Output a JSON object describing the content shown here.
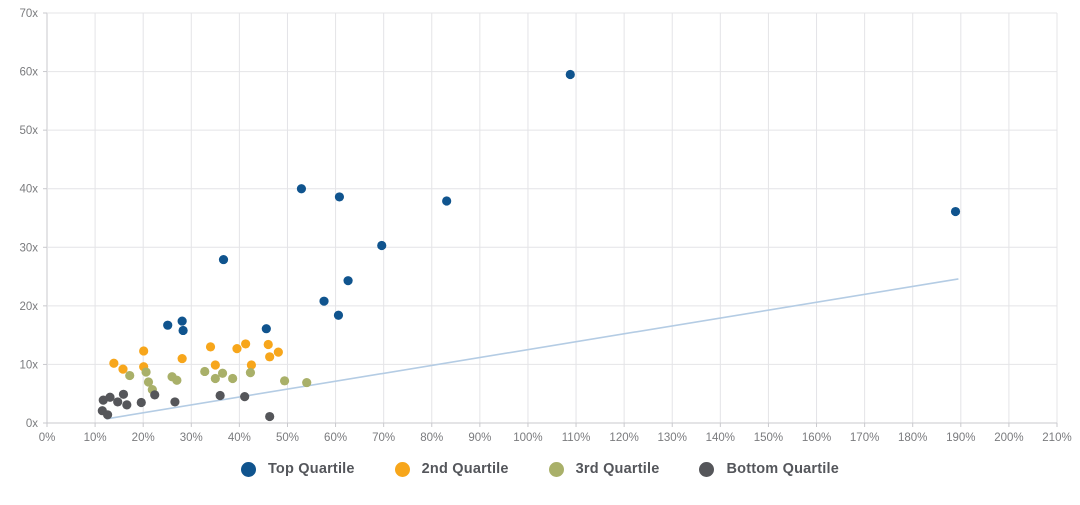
{
  "chart_data": {
    "type": "scatter",
    "title": "",
    "xlabel": "",
    "ylabel": "",
    "xlim": [
      0,
      210
    ],
    "ylim": [
      0,
      70
    ],
    "grid": true,
    "legend_position": "bottom-center",
    "x_ticks": {
      "values": [
        0,
        10,
        20,
        30,
        40,
        50,
        60,
        70,
        80,
        90,
        100,
        110,
        120,
        130,
        140,
        150,
        160,
        170,
        180,
        190,
        200,
        210
      ],
      "labels": [
        "0%",
        "10%",
        "20%",
        "30%",
        "40%",
        "50%",
        "60%",
        "70%",
        "80%",
        "90%",
        "100%",
        "110%",
        "120%",
        "130%",
        "140%",
        "150%",
        "160%",
        "170%",
        "180%",
        "190%",
        "200%",
        "210%"
      ]
    },
    "y_ticks": {
      "values": [
        0,
        10,
        20,
        30,
        40,
        50,
        60,
        70
      ],
      "labels": [
        "0x",
        "10x",
        "20x",
        "30x",
        "40x",
        "50x",
        "60x",
        "70x"
      ]
    },
    "series": [
      {
        "name": "Top Quartile",
        "color": "#10548e",
        "points": [
          [
            25.1,
            16.7
          ],
          [
            28.1,
            17.4
          ],
          [
            28.3,
            15.8
          ],
          [
            36.7,
            27.9
          ],
          [
            45.6,
            16.1
          ],
          [
            52.9,
            40.0
          ],
          [
            57.6,
            20.8
          ],
          [
            60.6,
            18.4
          ],
          [
            60.8,
            38.6
          ],
          [
            62.6,
            24.3
          ],
          [
            69.6,
            30.3
          ],
          [
            83.1,
            37.9
          ],
          [
            108.8,
            59.5
          ],
          [
            188.9,
            36.1
          ]
        ]
      },
      {
        "name": "2nd Quartile",
        "color": "#f7a61b",
        "points": [
          [
            13.9,
            10.2
          ],
          [
            15.8,
            9.2
          ],
          [
            20.1,
            12.3
          ],
          [
            20.1,
            9.6
          ],
          [
            28.1,
            11.0
          ],
          [
            34.0,
            13.0
          ],
          [
            35.0,
            9.9
          ],
          [
            39.5,
            12.7
          ],
          [
            41.3,
            13.5
          ],
          [
            42.5,
            9.9
          ],
          [
            46.0,
            13.4
          ],
          [
            46.3,
            11.3
          ],
          [
            48.1,
            12.1
          ]
        ]
      },
      {
        "name": "3rd Quartile",
        "color": "#a9b069",
        "points": [
          [
            17.2,
            8.1
          ],
          [
            20.6,
            8.7
          ],
          [
            21.1,
            7.0
          ],
          [
            21.9,
            5.7
          ],
          [
            26.0,
            7.9
          ],
          [
            27.0,
            7.3
          ],
          [
            32.8,
            8.8
          ],
          [
            35.0,
            7.6
          ],
          [
            36.5,
            8.5
          ],
          [
            38.6,
            7.6
          ],
          [
            42.3,
            8.6
          ],
          [
            49.4,
            7.2
          ],
          [
            54.0,
            6.9
          ]
        ]
      },
      {
        "name": "Bottom Quartile",
        "color": "#55565a",
        "points": [
          [
            11.5,
            2.1
          ],
          [
            11.7,
            3.9
          ],
          [
            12.6,
            1.4
          ],
          [
            13.1,
            4.4
          ],
          [
            14.7,
            3.6
          ],
          [
            15.9,
            4.9
          ],
          [
            16.6,
            3.1
          ],
          [
            19.6,
            3.5
          ],
          [
            22.4,
            4.8
          ],
          [
            26.6,
            3.6
          ],
          [
            36.0,
            4.7
          ],
          [
            41.1,
            4.5
          ],
          [
            46.3,
            1.1
          ]
        ]
      }
    ],
    "trend_line": {
      "color": "#b4cce4",
      "x1": 12.3,
      "y1": 0.7,
      "x2": 189.5,
      "y2": 24.6
    }
  },
  "legend": {
    "items": [
      {
        "label": "Top Quartile",
        "color": "#10548e"
      },
      {
        "label": "2nd Quartile",
        "color": "#f7a61b"
      },
      {
        "label": "3rd Quartile",
        "color": "#a9b069"
      },
      {
        "label": "Bottom Quartile",
        "color": "#55565a"
      }
    ]
  },
  "style": {
    "background": "#ffffff",
    "grid_color": "#e4e4e7",
    "axis_color": "#c9c9cd",
    "tick_label_color": "#7a7b7e",
    "legend_text_color": "#54565b"
  }
}
